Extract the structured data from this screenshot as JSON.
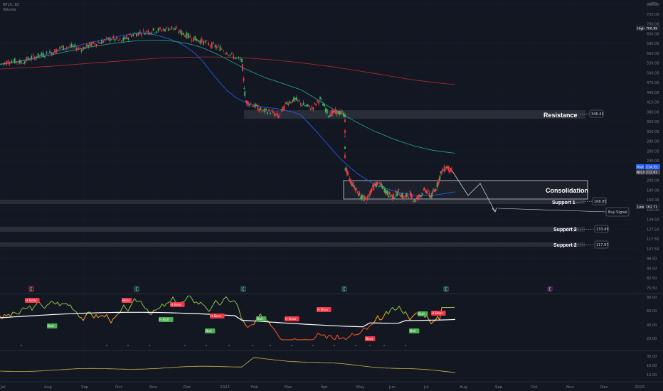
{
  "header": {
    "symbol_line": "NFLX, 1D",
    "sub_line": "Volume"
  },
  "currency": "USD",
  "chart_data": {
    "type": "candlestick",
    "price_axis": {
      "ticks": [
        "800.00",
        "720.00",
        "700.00",
        "650.00",
        "590.00",
        "560.00",
        "530.00",
        "500.00",
        "470.00",
        "440.00",
        "410.00",
        "380.00",
        "350.00",
        "320.00",
        "290.00",
        "260.00",
        "240.00",
        "220.00",
        "200.00",
        "180.00",
        "160.00",
        "150.00",
        "139.50",
        "127.50",
        "117.50",
        "107.50",
        "98.50",
        "90.50",
        "82.50",
        "75.50"
      ]
    },
    "x_labels": [
      "Jul",
      "Aug",
      "Sep",
      "Oct",
      "Nov",
      "Dec",
      "2022",
      "Feb",
      "Mar",
      "Apr",
      "May",
      "Jun",
      "Jul",
      "Aug",
      "Sep",
      "Oct",
      "Nov",
      "Dec",
      "2023"
    ],
    "price_tags": {
      "high": {
        "label": "High",
        "value": "700.99"
      },
      "last": {
        "label": "Post",
        "value": "214.35"
      },
      "prev": {
        "label": "NFLX",
        "value": "212.91"
      },
      "low": {
        "label": "Low",
        "value": "162.71"
      }
    },
    "annotations": {
      "resistance": {
        "label": "Resistance",
        "value": "346.41"
      },
      "consolidation": {
        "label": "Consolidation"
      },
      "support1": {
        "label": "Support 1",
        "value": "168.05"
      },
      "buy_signal": {
        "label": "Buy Signal"
      },
      "support2a": {
        "label": "Support 2",
        "value": "133.49"
      },
      "support2b": {
        "label": "Support 2",
        "value": "117.97"
      }
    },
    "close_series": [
      521,
      535,
      528,
      548,
      560,
      572,
      595,
      600,
      590,
      612,
      625,
      642,
      628,
      661,
      676,
      683,
      690,
      701,
      672,
      646,
      627,
      608,
      590,
      558,
      533,
      384,
      372,
      355,
      353,
      339,
      379,
      390,
      372,
      362,
      391,
      345,
      352,
      344,
      224,
      200,
      188,
      175,
      171,
      188,
      196,
      190,
      180,
      176,
      183,
      174,
      180,
      170,
      178,
      186,
      176,
      189,
      216,
      225,
      214
    ],
    "ma_fast": [
      519,
      524,
      530,
      538,
      546,
      556,
      568,
      580,
      590,
      600,
      610,
      620,
      628,
      638,
      648,
      657,
      665,
      670,
      668,
      662,
      651,
      637,
      620,
      596,
      568,
      530,
      486,
      448,
      418,
      396,
      382,
      373,
      368,
      364,
      362,
      357,
      352,
      343,
      320,
      298,
      276,
      256,
      238,
      224,
      212,
      203,
      195,
      190,
      186,
      182,
      180,
      178,
      178,
      178,
      179,
      181,
      183
    ],
    "ma_mid": [
      520,
      524,
      529,
      536,
      543,
      551,
      559,
      567,
      575,
      583,
      591,
      598,
      604,
      611,
      617,
      622,
      627,
      631,
      633,
      633,
      632,
      629,
      624,
      616,
      606,
      593,
      577,
      559,
      540,
      522,
      503,
      488,
      474,
      462,
      452,
      442,
      432,
      422,
      406,
      390,
      374,
      360,
      347,
      334,
      322,
      311,
      301,
      293,
      285,
      278,
      272,
      266,
      262,
      258,
      255,
      253,
      251
    ],
    "ma_slow": [
      500,
      502,
      504,
      506,
      508,
      510,
      513,
      516,
      519,
      522,
      525,
      528,
      531,
      534,
      537,
      540,
      543,
      546,
      548,
      549,
      550,
      551,
      552,
      552,
      551,
      550,
      548,
      546,
      543,
      540,
      536,
      532,
      528,
      523,
      518,
      513,
      508,
      502,
      496,
      490,
      484,
      478,
      472,
      466,
      460,
      455,
      451,
      447,
      443,
      440
    ],
    "rsi_axis_ticks": [
      "80.00",
      "60.00",
      "40.00",
      "20.00"
    ],
    "lower_axis_ticks": [
      "30.00",
      "16.00",
      "12.00"
    ],
    "rsi_labels": [
      "H Bear",
      "Bull",
      "H Bull",
      "Bull",
      "Bear",
      "H Bear",
      "Bull",
      "H Bear",
      "H Bear",
      "Bear",
      "Bull",
      "Bull",
      "H Bear",
      "H Bear"
    ],
    "event_marks": [
      "E",
      "E",
      "E",
      "E",
      "E",
      "E"
    ]
  }
}
